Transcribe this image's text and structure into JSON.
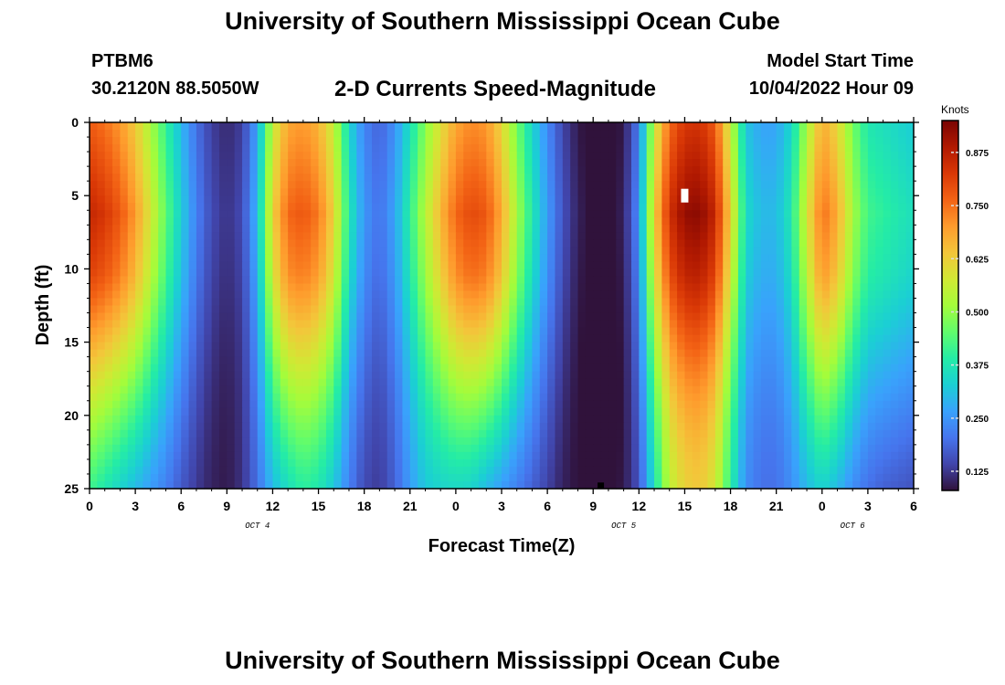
{
  "header": {
    "title": "University of Southern Mississippi Ocean Cube",
    "station": "PTBM6",
    "coords": "30.2120N  88.5050W",
    "subtitle": "2-D Currents Speed-Magnitude",
    "start_label": "Model Start Time",
    "start_value": "10/04/2022 Hour 09"
  },
  "footer": {
    "title": "University of Southern Mississippi Ocean Cube"
  },
  "chart_data": {
    "type": "heatmap",
    "title": "2-D Currents Speed-Magnitude",
    "xlabel": "Forecast Time(Z)",
    "ylabel": "Depth (ft)",
    "x_range_hours": [
      0,
      54
    ],
    "x_tick_labels": [
      "0",
      "3",
      "6",
      "9",
      "12",
      "15",
      "18",
      "21",
      "0",
      "3",
      "6",
      "9",
      "12",
      "15",
      "18",
      "21",
      "0",
      "3",
      "6"
    ],
    "x_date_labels": [
      {
        "label": "OCT 4",
        "hour": 11
      },
      {
        "label": "OCT 5",
        "hour": 35
      },
      {
        "label": "OCT 6",
        "hour": 50
      }
    ],
    "y_range": [
      0,
      25
    ],
    "y_ticks": [
      0,
      5,
      10,
      15,
      20,
      25
    ],
    "colorbar": {
      "title": "Knots",
      "min": 0.08,
      "max": 0.95,
      "ticks": [
        "0.125",
        "0.250",
        "0.375",
        "0.500",
        "0.625",
        "0.750",
        "0.875"
      ],
      "colors": [
        "#30123b",
        "#4145ab",
        "#4675ed",
        "#39a2fc",
        "#1bcfd4",
        "#24eca6",
        "#61fc6c",
        "#a4fc3b",
        "#d1e834",
        "#f3c63a",
        "#fe9b2d",
        "#f36315",
        "#d93806",
        "#b11901",
        "#7a0403"
      ]
    },
    "speed_model": {
      "units": "knots",
      "hourly_peak_speed": [
        0.86,
        0.83,
        0.78,
        0.7,
        0.58,
        0.45,
        0.33,
        0.22,
        0.15,
        0.12,
        0.15,
        0.3,
        0.62,
        0.76,
        0.78,
        0.74,
        0.62,
        0.38,
        0.25,
        0.2,
        0.27,
        0.4,
        0.54,
        0.66,
        0.76,
        0.8,
        0.78,
        0.68,
        0.52,
        0.38,
        0.26,
        0.16,
        0.1,
        0.07,
        0.07,
        0.1,
        0.24,
        0.62,
        0.84,
        0.92,
        0.93,
        0.86,
        0.62,
        0.35,
        0.3,
        0.3,
        0.38,
        0.58,
        0.75,
        0.68,
        0.52,
        0.42,
        0.4,
        0.38,
        0.36
      ],
      "hourly_speed_at_25ft": [
        0.42,
        0.38,
        0.34,
        0.3,
        0.26,
        0.22,
        0.17,
        0.13,
        0.1,
        0.09,
        0.12,
        0.2,
        0.3,
        0.36,
        0.4,
        0.38,
        0.32,
        0.22,
        0.15,
        0.13,
        0.18,
        0.26,
        0.32,
        0.34,
        0.35,
        0.34,
        0.3,
        0.26,
        0.22,
        0.18,
        0.14,
        0.1,
        0.08,
        0.07,
        0.07,
        0.09,
        0.16,
        0.36,
        0.55,
        0.62,
        0.64,
        0.58,
        0.4,
        0.24,
        0.2,
        0.2,
        0.24,
        0.3,
        0.34,
        0.3,
        0.24,
        0.2,
        0.18,
        0.17,
        0.16
      ]
    },
    "markers": [
      {
        "type": "max",
        "hour": 39,
        "depth_ft": 5,
        "color": "#ffffff"
      },
      {
        "type": "min",
        "hour": 33.5,
        "depth_ft": 24.8,
        "color": "#000000"
      }
    ]
  }
}
